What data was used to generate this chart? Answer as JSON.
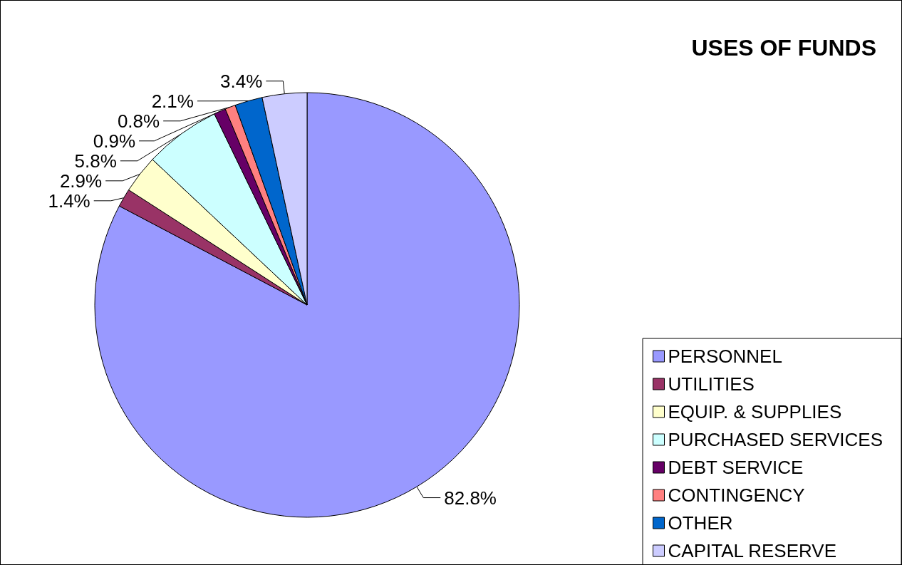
{
  "chart_data": {
    "type": "pie",
    "title": "USES OF FUNDS",
    "categories": [
      "PERSONNEL",
      "UTILITIES",
      "EQUIP. & SUPPLIES",
      "PURCHASED SERVICES",
      "DEBT SERVICE",
      "CONTINGENCY",
      "OTHER",
      "CAPITAL RESERVE"
    ],
    "values": [
      82.8,
      1.4,
      2.9,
      5.8,
      0.9,
      0.8,
      2.1,
      3.4
    ],
    "value_labels": [
      "82.8%",
      "1.4%",
      "2.9%",
      "5.8%",
      "0.9%",
      "0.8%",
      "2.1%",
      "3.4%"
    ],
    "colors": [
      "#9999ff",
      "#993366",
      "#ffffcc",
      "#ccffff",
      "#660066",
      "#ff8080",
      "#0066cc",
      "#ccccff"
    ],
    "legend": "bottom right"
  }
}
